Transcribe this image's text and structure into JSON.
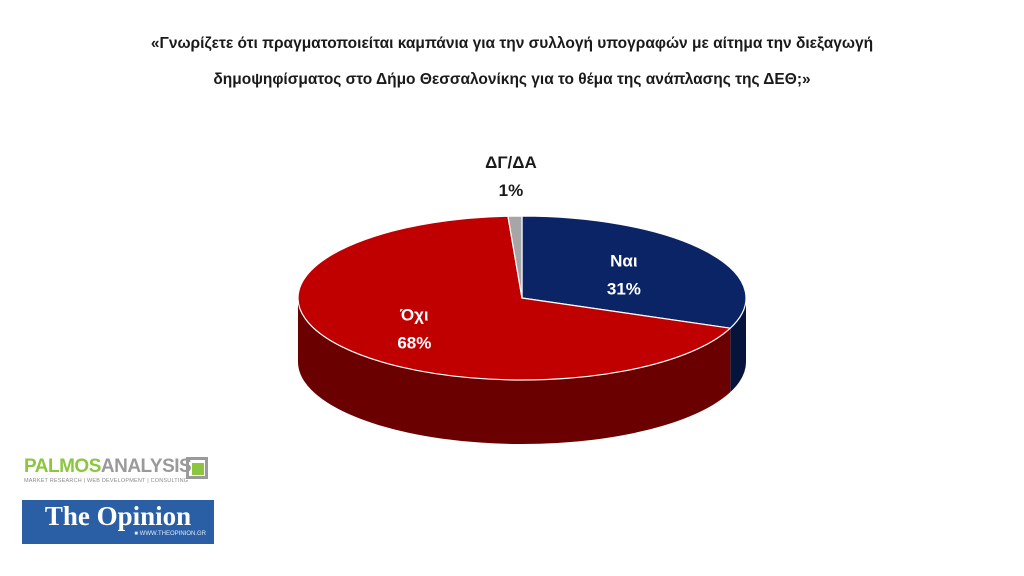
{
  "chart_data": {
    "type": "pie",
    "title": "«Γνωρίζετε ότι πραγματοποιείται καμπάνια για την συλλογή υπογραφών με αίτημα την διεξαγωγή δημοψηφίσματος στο Δήμο Θεσσαλονίκης για το θέμα της ανάπλασης της ΔΕΘ;»",
    "style": "3d",
    "slices": [
      {
        "label": "Ναι",
        "value": 31,
        "display": "31%",
        "color": "#0b2466",
        "side_color": "#05143a",
        "text_color": "#ffffff"
      },
      {
        "label": "Όχι",
        "value": 68,
        "display": "68%",
        "color": "#c00000",
        "side_color": "#6b0000",
        "text_color": "#ffffff"
      },
      {
        "label": "ΔΓ/ΔΑ",
        "value": 1,
        "display": "1%",
        "color": "#a6a6a6",
        "side_color": "#6e6e6e",
        "text_color": "#1a1a1a"
      }
    ]
  },
  "logos": {
    "palmos": {
      "part1": "PALMOS",
      "part2": "ANALYSIS",
      "tagline": "MARKET RESEARCH | WEB DEVELOPMENT | CONSULTING"
    },
    "opinion": {
      "name": "The Opinion",
      "tagline_left": "",
      "url": "■ WWW.THEOPINION.GR"
    }
  }
}
